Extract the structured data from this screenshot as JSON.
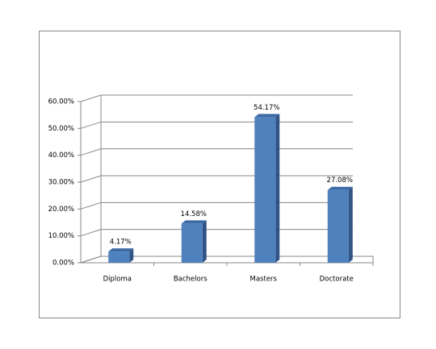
{
  "chart_data": {
    "type": "bar",
    "categories": [
      "Diploma",
      "Bachelors",
      "Masters",
      "Doctorate"
    ],
    "values": [
      4.17,
      14.58,
      54.17,
      27.08
    ],
    "value_labels": [
      "4.17%",
      "14.58%",
      "54.17%",
      "27.08%"
    ],
    "color": "#4f81bd",
    "ylim": [
      0,
      60
    ],
    "yticks": [
      {
        "value": 0,
        "label": "0.00%"
      },
      {
        "value": 10,
        "label": "10.00%"
      },
      {
        "value": 20,
        "label": "20.00%"
      },
      {
        "value": 30,
        "label": "30.00%"
      },
      {
        "value": 40,
        "label": "40.00%"
      },
      {
        "value": 50,
        "label": "50.00%"
      },
      {
        "value": 60,
        "label": "60.00%"
      }
    ],
    "grid": true
  }
}
